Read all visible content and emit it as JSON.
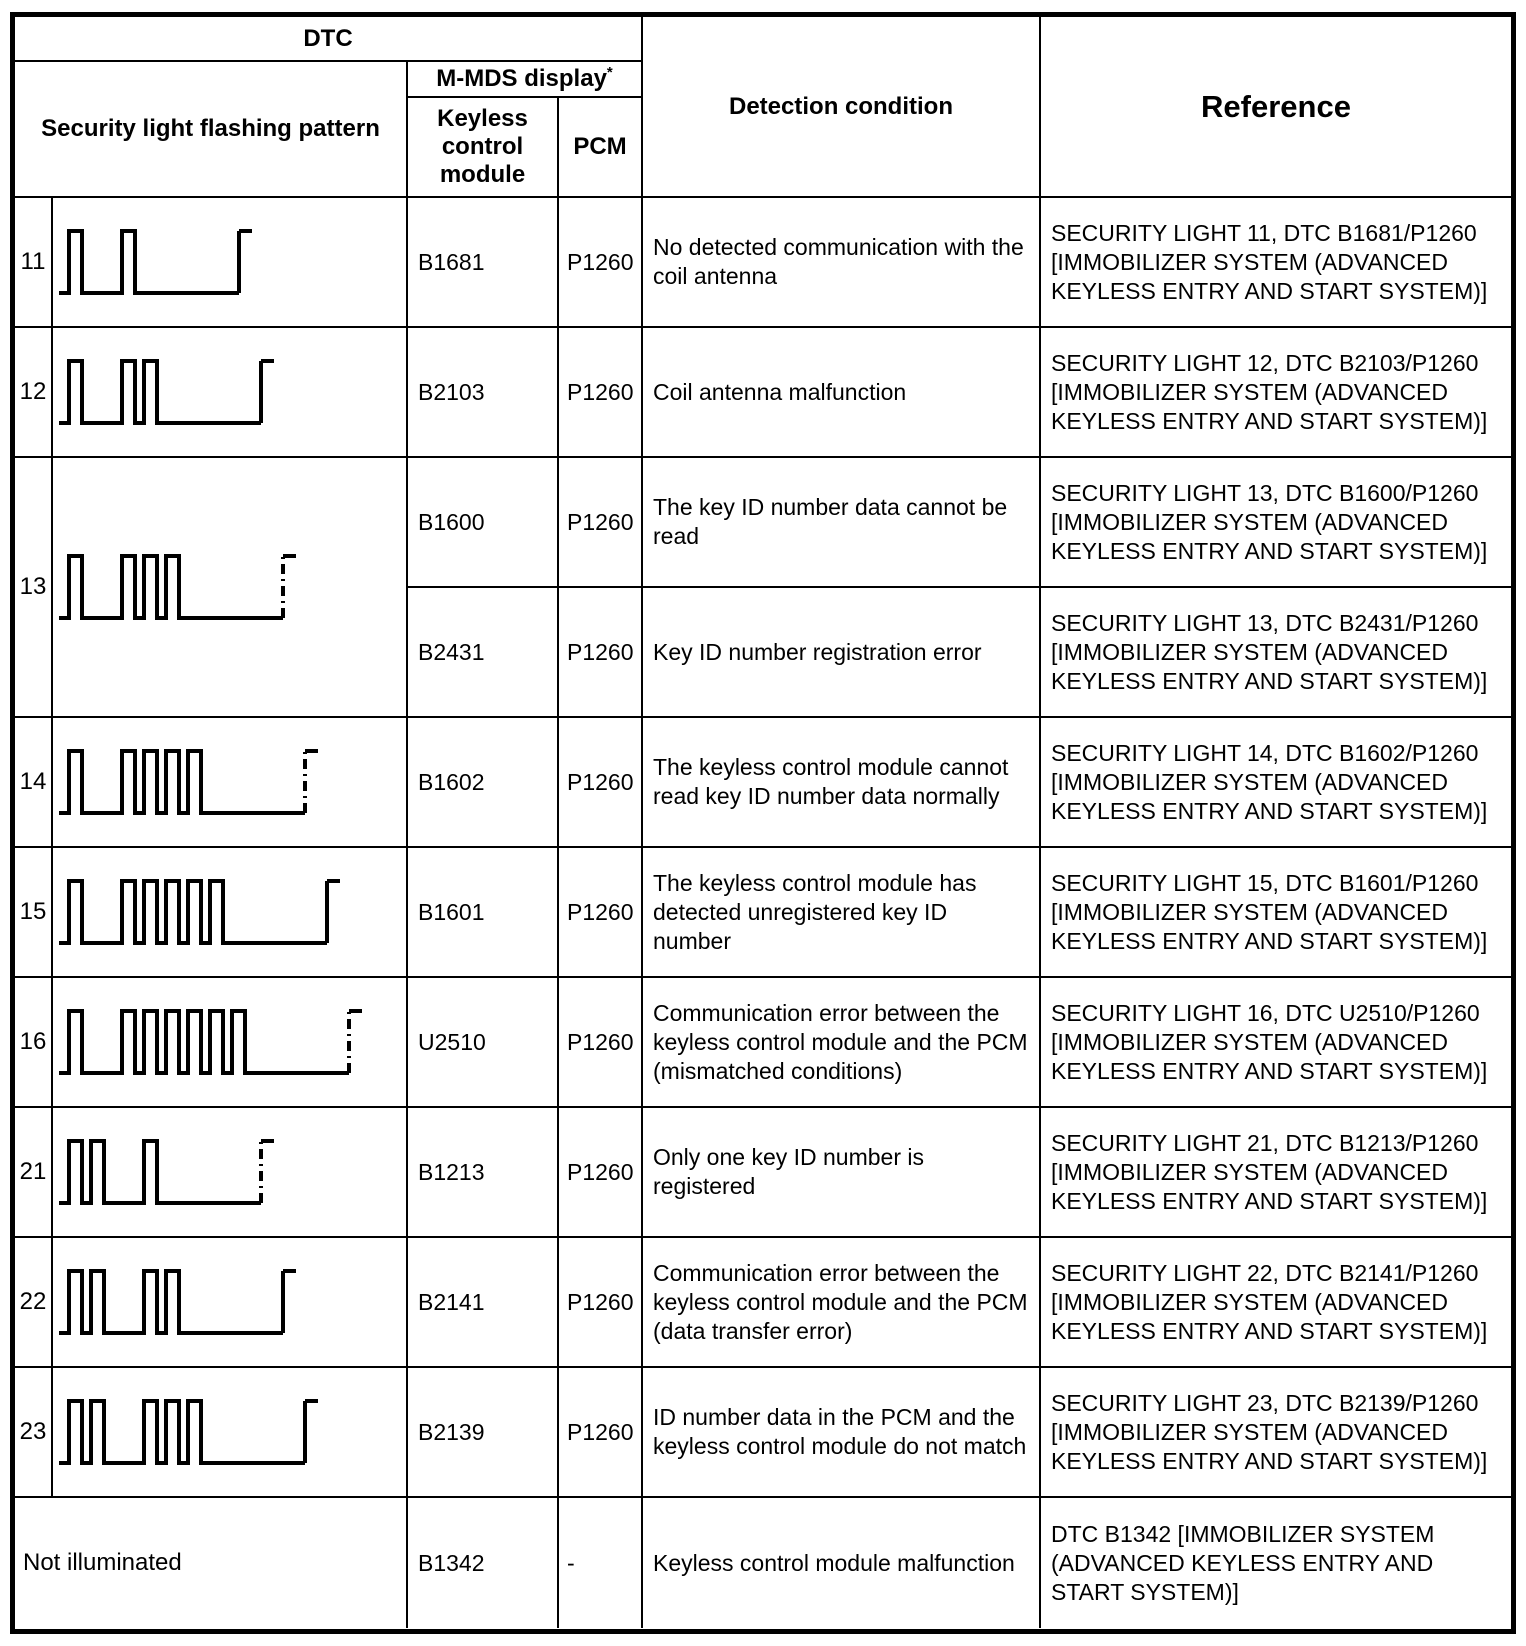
{
  "header": {
    "dtc": "DTC",
    "pattern": "Security light flashing pattern",
    "mmds": "M-MDS display",
    "mmds_marker": "*",
    "keyless": "Keyless control module",
    "pcm": "PCM",
    "detection": "Detection condition",
    "reference": "Reference"
  },
  "rows": [
    {
      "code": "11",
      "pattern": {
        "groups": [
          1,
          1
        ],
        "end": "solid"
      },
      "keyless": "B1681",
      "pcm": "P1260",
      "detection": "No detected communication with the coil antenna",
      "reference": "SECURITY LIGHT 11, DTC B1681/P1260 [IMMOBILIZER SYSTEM (ADVANCED KEYLESS ENTRY AND START SYSTEM)]"
    },
    {
      "code": "12",
      "pattern": {
        "groups": [
          1,
          2
        ],
        "end": "solid"
      },
      "keyless": "B2103",
      "pcm": "P1260",
      "detection": "Coil antenna malfunction",
      "reference": "SECURITY LIGHT 12, DTC B2103/P1260 [IMMOBILIZER SYSTEM (ADVANCED KEYLESS ENTRY AND START SYSTEM)]"
    },
    {
      "code": "13",
      "pattern": {
        "groups": [
          1,
          3
        ],
        "end": "dashed"
      },
      "subrows": [
        {
          "keyless": "B1600",
          "pcm": "P1260",
          "detection": "The key ID number data cannot be read",
          "reference": "SECURITY LIGHT 13, DTC B1600/P1260 [IMMOBILIZER SYSTEM (ADVANCED KEYLESS ENTRY AND START SYSTEM)]"
        },
        {
          "keyless": "B2431",
          "pcm": "P1260",
          "detection": "Key ID number registration error",
          "reference": "SECURITY LIGHT 13, DTC B2431/P1260 [IMMOBILIZER SYSTEM (ADVANCED KEYLESS ENTRY AND START SYSTEM)]"
        }
      ]
    },
    {
      "code": "14",
      "pattern": {
        "groups": [
          1,
          4
        ],
        "end": "dashed"
      },
      "keyless": "B1602",
      "pcm": "P1260",
      "detection": "The keyless control module cannot read key ID number data normally",
      "reference": "SECURITY LIGHT 14, DTC B1602/P1260 [IMMOBILIZER SYSTEM (ADVANCED KEYLESS ENTRY AND START SYSTEM)]"
    },
    {
      "code": "15",
      "pattern": {
        "groups": [
          1,
          5
        ],
        "end": "solid"
      },
      "keyless": "B1601",
      "pcm": "P1260",
      "detection": "The keyless control module has detected unregistered key ID number",
      "reference": "SECURITY LIGHT 15, DTC B1601/P1260 [IMMOBILIZER SYSTEM (ADVANCED KEYLESS ENTRY AND START SYSTEM)]"
    },
    {
      "code": "16",
      "pattern": {
        "groups": [
          1,
          6
        ],
        "end": "dashed"
      },
      "keyless": "U2510",
      "pcm": "P1260",
      "detection": "Communication error between the keyless control module and the PCM (mismatched conditions)",
      "reference": "SECURITY LIGHT 16, DTC U2510/P1260 [IMMOBILIZER SYSTEM (ADVANCED KEYLESS ENTRY AND START SYSTEM)]"
    },
    {
      "code": "21",
      "pattern": {
        "groups": [
          2,
          1
        ],
        "end": "dashed"
      },
      "keyless": "B1213",
      "pcm": "P1260",
      "detection": "Only one key ID number is registered",
      "reference": "SECURITY LIGHT 21, DTC B1213/P1260 [IMMOBILIZER SYSTEM (ADVANCED KEYLESS ENTRY AND START SYSTEM)]"
    },
    {
      "code": "22",
      "pattern": {
        "groups": [
          2,
          2
        ],
        "end": "solid"
      },
      "keyless": "B2141",
      "pcm": "P1260",
      "detection": "Communication error between the keyless control module and the PCM (data transfer error)",
      "reference": "SECURITY LIGHT 22, DTC B2141/P1260 [IMMOBILIZER SYSTEM (ADVANCED KEYLESS ENTRY AND START SYSTEM)]"
    },
    {
      "code": "23",
      "pattern": {
        "groups": [
          2,
          3
        ],
        "end": "solid"
      },
      "keyless": "B2139",
      "pcm": "P1260",
      "detection": "ID number data in the PCM and the keyless control module do not match",
      "reference": "SECURITY LIGHT 23, DTC B2139/P1260 [IMMOBILIZER SYSTEM (ADVANCED KEYLESS ENTRY AND START SYSTEM)]"
    },
    {
      "code": "Not illuminated",
      "pattern": null,
      "keyless": "B1342",
      "pcm": "-",
      "detection": "Keyless control module malfunction",
      "reference": "DTC B1342 [IMMOBILIZER SYSTEM (ADVANCED KEYLESS ENTRY AND START SYSTEM)]"
    }
  ]
}
